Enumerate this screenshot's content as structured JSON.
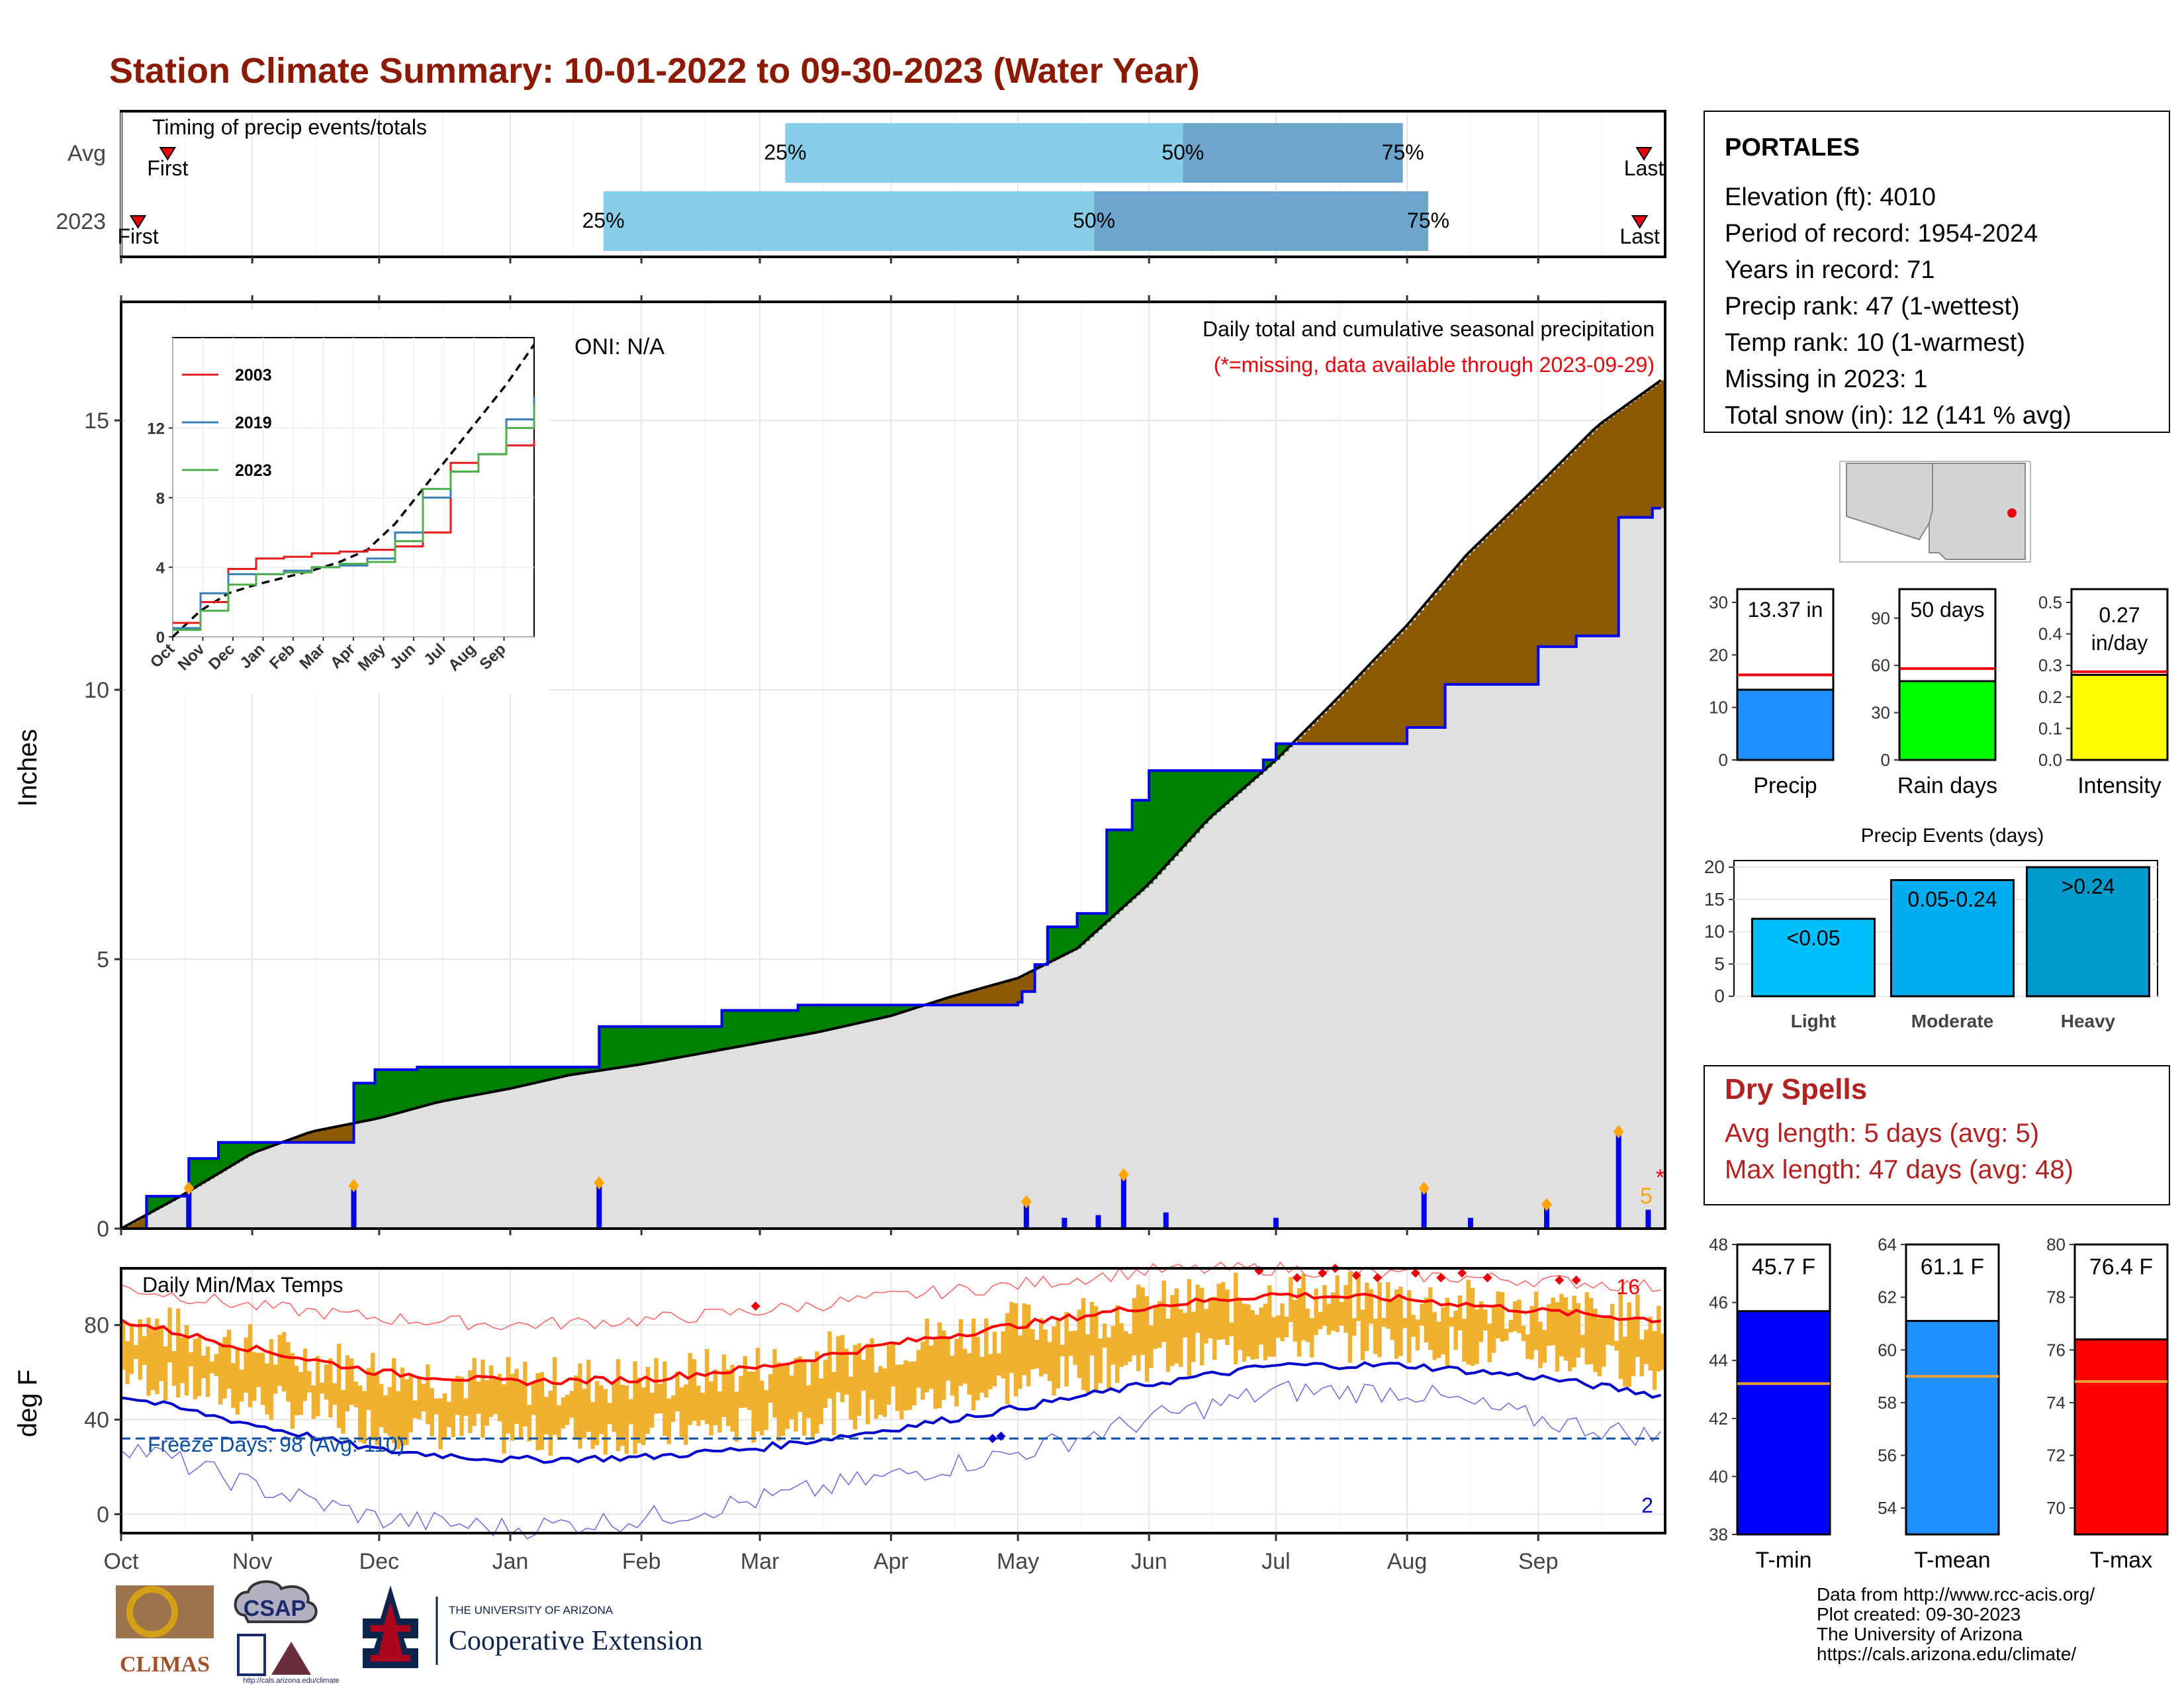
{
  "title": "Station Climate Summary: 10-01-2022 to 09-30-2023 (Water Year)",
  "colors": {
    "title": "#8B1A00",
    "precip_light": "#87CEEB",
    "precip_dark": "#6CA6CD",
    "green_fill": "#008000",
    "brown_fill": "#8B5A00",
    "grey_fill": "#E0E0E0",
    "blue_line": "#0000EE",
    "orange_bar": "#F0B030",
    "tmax_avg": "#FF0000",
    "tmin_avg": "#0000CC",
    "dry_spell_text": "#B22222"
  },
  "timing_panel": {
    "label": "Timing of precip events/totals",
    "rows": [
      {
        "label": "Avg",
        "first_label": "First",
        "last_label": "Last",
        "first_date": "2022-10-12",
        "last_date": "2023-09-26",
        "p25": "2023-03-07",
        "p50": "2023-06-09",
        "p75": "2023-07-31",
        "p25_label": "25%",
        "p50_label": "50%",
        "p75_label": "75%"
      },
      {
        "label": "2023",
        "first_label": "First",
        "last_label": "Last",
        "first_date": "2022-10-05",
        "last_date": "2023-09-25",
        "p25": "2023-01-23",
        "p50": "2023-05-19",
        "p75": "2023-08-06",
        "p25_label": "25%",
        "p50_label": "50%",
        "p75_label": "75%"
      }
    ]
  },
  "precip_panel": {
    "ylabel": "Inches",
    "yticks": [
      0,
      5,
      10,
      15
    ],
    "annot_title": "Daily total and cumulative seasonal precipitation",
    "annot_missing": "(*=missing, data available through 2023-09-29)",
    "oni": "ONI: N/A",
    "count_label": "5",
    "missing_marker": "*"
  },
  "inset": {
    "yticks": [
      "0",
      "4",
      "8",
      "12"
    ],
    "months": [
      "Oct",
      "Nov",
      "Dec",
      "Jan",
      "Feb",
      "Mar",
      "Apr",
      "May",
      "Jun",
      "Jul",
      "Aug",
      "Sep"
    ],
    "legend": [
      {
        "name": "2003",
        "color": "#E41A1C"
      },
      {
        "name": "2019",
        "color": "#377EB8"
      },
      {
        "name": "2023",
        "color": "#4DAF4A"
      }
    ]
  },
  "temp_panel": {
    "ylabel": "deg F",
    "label": "Daily Min/Max Temps",
    "yticks": [
      0,
      40,
      80
    ],
    "freeze_label": "Freeze Days: 98 (Avg: 110)",
    "hot_count": "16",
    "cold_count": "2"
  },
  "x_months": [
    "Oct",
    "Nov",
    "Dec",
    "Jan",
    "Feb",
    "Mar",
    "Apr",
    "May",
    "Jun",
    "Jul",
    "Aug",
    "Sep"
  ],
  "station": {
    "name": "PORTALES",
    "lines": [
      "Elevation (ft): 4010",
      "Period of record: 1954-2024",
      "Years in record: 71",
      "Precip rank: 47 (1-wettest)",
      "Temp rank: 10 (1-warmest)",
      "Missing in 2023: 1",
      "Total snow (in): 12 (141 % avg)"
    ]
  },
  "summary_bars": [
    {
      "label": "Precip",
      "value": 13.37,
      "value_label": "13.37 in",
      "avg": 16.2,
      "ymax": 30,
      "yticks": [
        "0",
        "10",
        "20",
        "30"
      ],
      "color": "#1E90FF"
    },
    {
      "label": "Rain days",
      "value": 50,
      "value_label": "50 days",
      "avg": 58,
      "ymax": 100,
      "yticks": [
        "0",
        "30",
        "60",
        "90"
      ],
      "color": "#00FF00"
    },
    {
      "label": "Intensity",
      "value": 0.27,
      "value_label": "0.27 in/day",
      "avg": 0.28,
      "ymax": 0.5,
      "yticks": [
        "0.0",
        "0.1",
        "0.2",
        "0.3",
        "0.4",
        "0.5"
      ],
      "color": "#FFFF00"
    }
  ],
  "precip_events": {
    "title": "Precip Events (days)",
    "yticks": [
      "0",
      "5",
      "10",
      "15",
      "20"
    ],
    "ymax": 20,
    "bars": [
      {
        "category": "Light",
        "value": 12,
        "label": "<0.05",
        "color": "#00BFFF"
      },
      {
        "category": "Moderate",
        "value": 18,
        "label": "0.05-0.24",
        "color": "#00AEEF"
      },
      {
        "category": "Heavy",
        "value": 20,
        "label": ">0.24",
        "color": "#009ACD"
      }
    ]
  },
  "dry_spells": {
    "title": "Dry Spells",
    "avg_line": "Avg length: 5 days (avg: 5)",
    "max_line": "Max length: 47 days (avg: 48)"
  },
  "temp_bars": [
    {
      "label": "T-min",
      "value": 45.7,
      "value_label": "45.7 F",
      "avg": 43.2,
      "ymin": 38,
      "ymax": 48,
      "yticks": [
        "38",
        "40",
        "42",
        "44",
        "46",
        "48"
      ],
      "color": "#0000FF"
    },
    {
      "label": "T-mean",
      "value": 61.1,
      "value_label": "61.1 F",
      "avg": 59.0,
      "ymin": 53,
      "ymax": 64,
      "yticks": [
        "54",
        "56",
        "58",
        "60",
        "62",
        "64"
      ],
      "color": "#1E90FF"
    },
    {
      "label": "T-max",
      "value": 76.4,
      "value_label": "76.4 F",
      "avg": 74.8,
      "ymin": 69,
      "ymax": 80,
      "yticks": [
        "70",
        "72",
        "74",
        "76",
        "78",
        "80"
      ],
      "color": "#FF0000"
    }
  ],
  "footer": {
    "lines": [
      "Data from http://www.rcc-acis.org/",
      "Plot created: 09-30-2023",
      "The University of Arizona",
      "https://cals.arizona.edu/climate/"
    ],
    "climas": "CLIMAS",
    "csap": "CSAP",
    "csap_url": "http://cals.arizona.edu/climate",
    "ua_small": "THE UNIVERSITY OF ARIZONA",
    "ua_big": "Cooperative Extension"
  },
  "chart_data": [
    {
      "type": "area",
      "name": "cumulative precipitation",
      "ylabel": "Inches",
      "ylim": [
        0,
        17.2
      ],
      "x_unit": "month (water year)",
      "series": [
        {
          "name": "average cumulative",
          "x": [
            "Oct 1",
            "Oct 15",
            "Nov 1",
            "Nov 15",
            "Dec 1",
            "Dec 15",
            "Jan 1",
            "Jan 15",
            "Feb 1",
            "Feb 15",
            "Mar 1",
            "Mar 15",
            "Apr 1",
            "Apr 15",
            "May 1",
            "May 15",
            "Jun 1",
            "Jun 15",
            "Jul 1",
            "Jul 15",
            "Aug 1",
            "Aug 15",
            "Sep 1",
            "Sep 15",
            "Sep 30"
          ],
          "values": [
            0,
            0.6,
            1.4,
            1.8,
            2.05,
            2.35,
            2.6,
            2.85,
            3.05,
            3.25,
            3.45,
            3.65,
            3.95,
            4.3,
            4.65,
            5.2,
            6.4,
            7.6,
            8.7,
            9.8,
            11.2,
            12.5,
            13.8,
            14.9,
            15.8
          ]
        },
        {
          "name": "2023 cumulative",
          "x": [
            "Oct 1",
            "Oct 7",
            "Oct 17",
            "Oct 24",
            "Nov 25",
            "Nov 30",
            "Dec 10",
            "Jan 22",
            "Feb 20",
            "Mar 10",
            "May 1",
            "May 2",
            "May 5",
            "May 8",
            "May 15",
            "May 22",
            "May 28",
            "Jun 1",
            "Jun 3",
            "Jun 28",
            "Jul 1",
            "Aug 1",
            "Aug 10",
            "Sep 1",
            "Sep 10",
            "Sep 20",
            "Sep 28"
          ],
          "values": [
            0,
            0.6,
            1.3,
            1.6,
            2.7,
            2.95,
            3.0,
            3.75,
            4.05,
            4.15,
            4.2,
            4.4,
            4.9,
            5.6,
            5.85,
            7.4,
            7.95,
            8.5,
            8.5,
            8.7,
            9.0,
            9.3,
            10.1,
            10.8,
            11.0,
            13.2,
            13.37
          ]
        }
      ],
      "daily_bars": [
        {
          "date": "Oct 17",
          "value": 0.7
        },
        {
          "date": "Nov 25",
          "value": 0.75
        },
        {
          "date": "Jan 22",
          "value": 0.8
        },
        {
          "date": "May 3",
          "value": 0.45
        },
        {
          "date": "May 12",
          "value": 0.2
        },
        {
          "date": "May 20",
          "value": 0.25
        },
        {
          "date": "May 26",
          "value": 0.95
        },
        {
          "date": "Jun 5",
          "value": 0.3
        },
        {
          "date": "Jul 1",
          "value": 0.2
        },
        {
          "date": "Aug 5",
          "value": 0.7
        },
        {
          "date": "Aug 16",
          "value": 0.2
        },
        {
          "date": "Sep 3",
          "value": 0.4
        },
        {
          "date": "Sep 20",
          "value": 1.75
        },
        {
          "date": "Sep 27",
          "value": 0.35
        }
      ]
    },
    {
      "type": "line",
      "name": "daily temperatures",
      "ylabel": "deg F",
      "ylim": [
        -8,
        104
      ],
      "series": [
        {
          "name": "avg max",
          "x": [
            "Oct",
            "Nov",
            "Dec",
            "Jan",
            "Feb",
            "Mar",
            "Apr",
            "May",
            "Jun",
            "Jul",
            "Aug",
            "Sep",
            "Sep 30"
          ],
          "values": [
            82,
            70,
            60,
            56,
            57,
            62,
            72,
            80,
            88,
            93,
            91,
            86,
            82
          ]
        },
        {
          "name": "avg min",
          "x": [
            "Oct",
            "Nov",
            "Dec",
            "Jan",
            "Feb",
            "Mar",
            "Apr",
            "May",
            "Jun",
            "Jul",
            "Aug",
            "Sep",
            "Sep 30"
          ],
          "values": [
            50,
            38,
            27,
            23,
            24,
            28,
            36,
            45,
            55,
            63,
            63,
            58,
            50
          ]
        },
        {
          "name": "record high",
          "x": [
            "Oct",
            "Nov",
            "Dec",
            "Jan",
            "Feb",
            "Mar",
            "Apr",
            "May",
            "Jun",
            "Jul",
            "Aug",
            "Sep",
            "Sep 30"
          ],
          "values": [
            96,
            88,
            83,
            80,
            82,
            86,
            92,
            97,
            103,
            104,
            101,
            99,
            96
          ]
        },
        {
          "name": "record low",
          "x": [
            "Oct",
            "Nov",
            "Dec",
            "Jan",
            "Feb",
            "Mar",
            "Apr",
            "May",
            "Jun",
            "Jul",
            "Aug",
            "Sep",
            "Sep 30"
          ],
          "values": [
            30,
            12,
            -2,
            -6,
            -2,
            6,
            16,
            26,
            40,
            52,
            52,
            40,
            32
          ]
        }
      ],
      "freeze_line": 32
    }
  ]
}
